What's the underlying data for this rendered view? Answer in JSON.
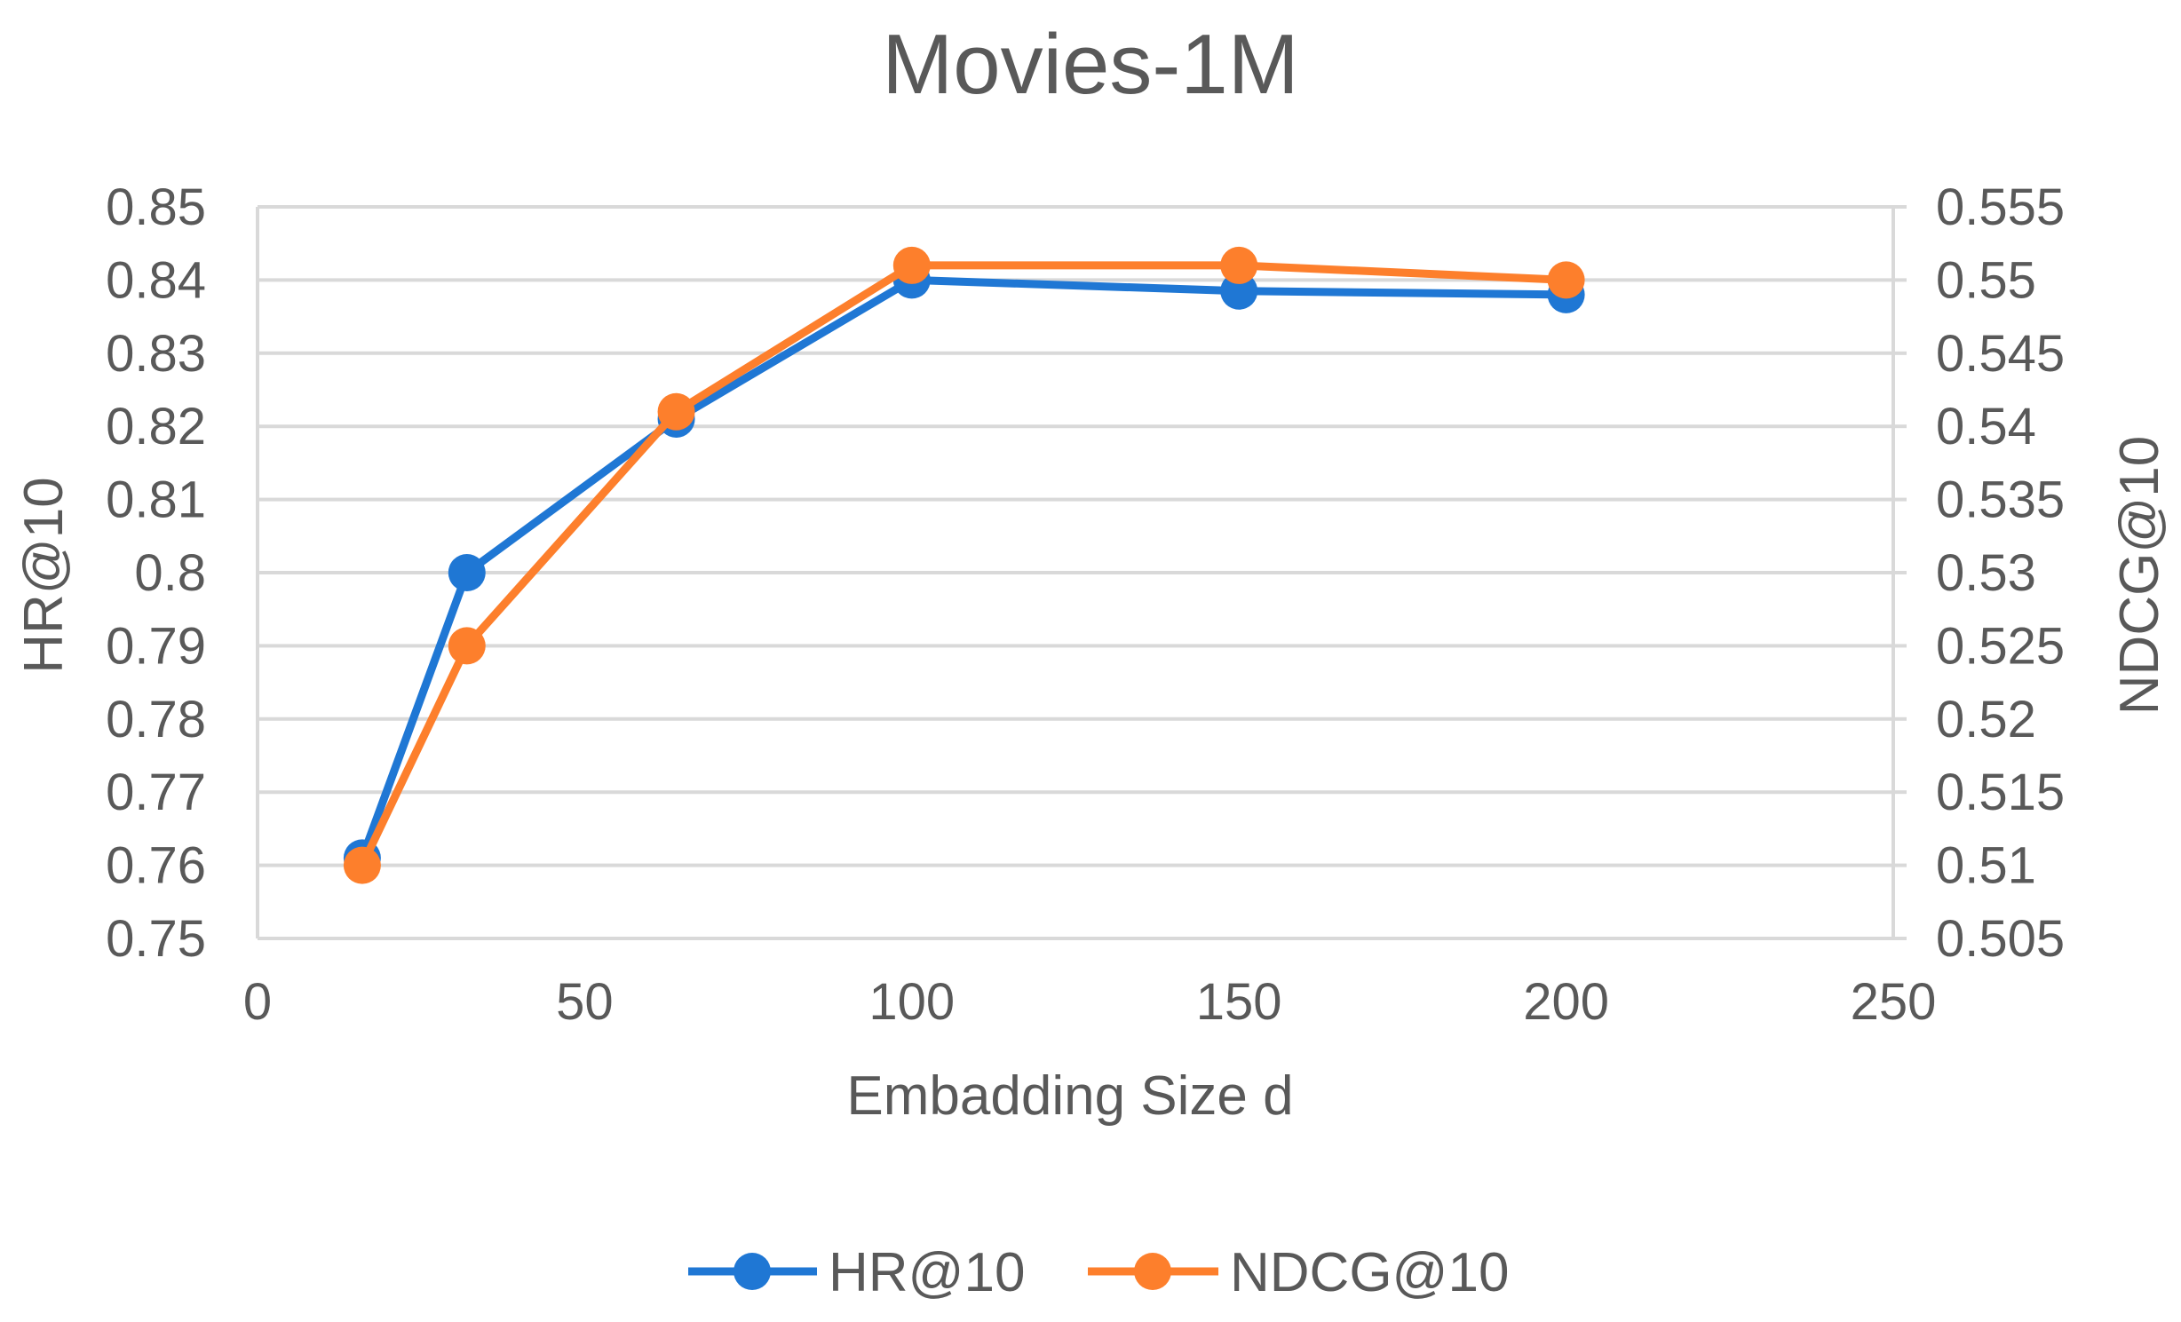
{
  "chart_data": {
    "type": "line",
    "title": "Movies-1M",
    "xlabel": "Embadding Size d",
    "ylabel_left": "HR@10",
    "ylabel_right": "NDCG@10",
    "xlim": [
      0,
      250
    ],
    "xticks": [
      "0",
      "50",
      "100",
      "150",
      "200",
      "250"
    ],
    "xtick_values": [
      0,
      50,
      100,
      150,
      200,
      250
    ],
    "ylim_left": [
      0.75,
      0.85
    ],
    "yticks_left": [
      "0.75",
      "0.76",
      "0.77",
      "0.78",
      "0.79",
      "0.8",
      "0.81",
      "0.82",
      "0.83",
      "0.84",
      "0.85"
    ],
    "ylim_right": [
      0.505,
      0.555
    ],
    "yticks_right": [
      "0.505",
      "0.51",
      "0.515",
      "0.52",
      "0.525",
      "0.53",
      "0.535",
      "0.54",
      "0.545",
      "0.55",
      "0.555"
    ],
    "grid": true,
    "legend_position": "bottom",
    "series": [
      {
        "name": "HR@10",
        "axis": "left",
        "color": "#1f77d4",
        "x": [
          16,
          32,
          64,
          100,
          150,
          200
        ],
        "values": [
          0.761,
          0.8,
          0.821,
          0.84,
          0.8385,
          0.838
        ]
      },
      {
        "name": "NDCG@10",
        "axis": "right",
        "color": "#fd7f2c",
        "x": [
          16,
          32,
          64,
          100,
          150,
          200
        ],
        "values": [
          0.51,
          0.525,
          0.541,
          0.551,
          0.551,
          0.55
        ]
      }
    ]
  }
}
